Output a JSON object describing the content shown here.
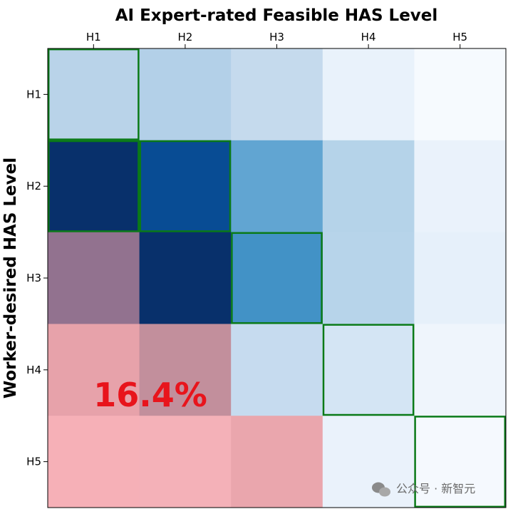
{
  "chart_data": {
    "type": "heatmap",
    "title": "AI Expert-rated Feasible HAS Level",
    "xlabel": "",
    "ylabel": "Worker-desired HAS Level",
    "x_categories": [
      "H1",
      "H2",
      "H3",
      "H4",
      "H5"
    ],
    "y_categories": [
      "H1",
      "H2",
      "H3",
      "H4",
      "H5"
    ],
    "x_axis_position": "top",
    "cell_colors": [
      [
        "#b9d3e9",
        "#b3d0e8",
        "#c5daed",
        "#e9f2fb",
        "#f6fafe"
      ],
      [
        "#08306b",
        "#084c94",
        "#61a5d2",
        "#b5d3e9",
        "#eaf2fb"
      ],
      [
        "#92728f",
        "#08306b",
        "#4292c6",
        "#b7d4ea",
        "#e6f0fa"
      ],
      [
        "#e7a2aa",
        "#c28f9c",
        "#c6dbef",
        "#d4e5f4",
        "#eff5fc"
      ],
      [
        "#f6b0b7",
        "#f4b1b8",
        "#eaa6ad",
        "#eaf2fb",
        "#f5f9fe"
      ]
    ],
    "highlighted_cells": [
      [
        0,
        0
      ],
      [
        1,
        0
      ],
      [
        1,
        1
      ],
      [
        2,
        2
      ],
      [
        3,
        3
      ],
      [
        4,
        4
      ]
    ],
    "highlight_color": "#0a7a17",
    "grid": false,
    "annotation": {
      "text": "16.4%",
      "color": "#e8141c",
      "cells": [
        [
          3,
          0
        ],
        [
          3,
          1
        ]
      ]
    }
  },
  "watermark": {
    "text": "公众号 · 新智元"
  }
}
